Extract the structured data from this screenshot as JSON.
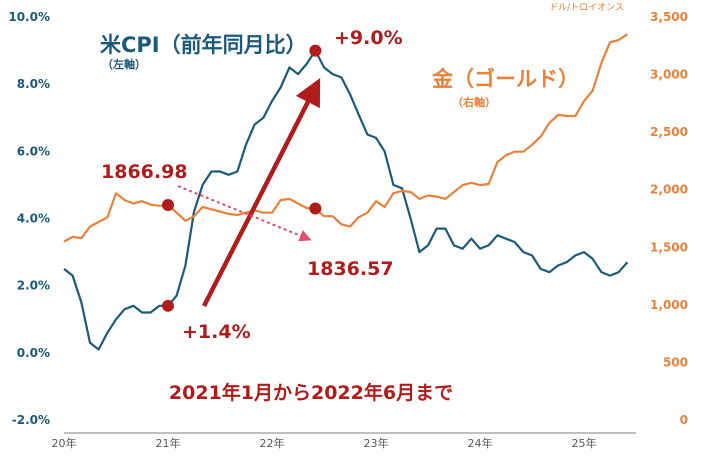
{
  "chart_data": {
    "type": "line",
    "title": "",
    "x_ticks": [
      "20年",
      "21年",
      "22年",
      "23年",
      "24年",
      "25年"
    ],
    "left_axis": {
      "unit_label": "",
      "ylim": [
        -2.0,
        10.0
      ],
      "tick_labels": [
        "-2.0%",
        "0.0%",
        "2.0%",
        "4.0%",
        "6.0%",
        "8.0%",
        "10.0%"
      ]
    },
    "right_axis": {
      "unit_label": "ドル/トロイオンス",
      "ylim": [
        0,
        3500
      ],
      "tick_labels": [
        "0",
        "500",
        "1,000",
        "1,500",
        "2,000",
        "2,500",
        "3,000",
        "3,500"
      ]
    },
    "series": [
      {
        "name": "米CPI（前年同月比）",
        "axis_note": "（左軸）",
        "axis": "left",
        "color": "#1b5a7a",
        "x": [
          2020.0,
          2020.083,
          2020.167,
          2020.25,
          2020.333,
          2020.417,
          2020.5,
          2020.583,
          2020.667,
          2020.75,
          2020.833,
          2020.917,
          2021.0,
          2021.083,
          2021.167,
          2021.25,
          2021.333,
          2021.417,
          2021.5,
          2021.583,
          2021.667,
          2021.75,
          2021.833,
          2021.917,
          2022.0,
          2022.083,
          2022.167,
          2022.25,
          2022.333,
          2022.417,
          2022.5,
          2022.583,
          2022.667,
          2022.75,
          2022.833,
          2022.917,
          2023.0,
          2023.083,
          2023.167,
          2023.25,
          2023.333,
          2023.417,
          2023.5,
          2023.583,
          2023.667,
          2023.75,
          2023.833,
          2023.917,
          2024.0,
          2024.083,
          2024.167,
          2024.25,
          2024.333,
          2024.417,
          2024.5,
          2024.583,
          2024.667,
          2024.75,
          2024.833,
          2024.917,
          2025.0,
          2025.083,
          2025.167,
          2025.25,
          2025.333,
          2025.417
        ],
        "values": [
          2.5,
          2.3,
          1.5,
          0.3,
          0.1,
          0.6,
          1.0,
          1.3,
          1.4,
          1.2,
          1.2,
          1.4,
          1.4,
          1.7,
          2.6,
          4.2,
          5.0,
          5.4,
          5.4,
          5.3,
          5.4,
          6.2,
          6.8,
          7.0,
          7.5,
          7.9,
          8.5,
          8.3,
          8.6,
          9.0,
          8.5,
          8.3,
          8.2,
          7.7,
          7.1,
          6.5,
          6.4,
          6.0,
          5.0,
          4.9,
          4.0,
          3.0,
          3.2,
          3.7,
          3.7,
          3.2,
          3.1,
          3.4,
          3.1,
          3.2,
          3.5,
          3.4,
          3.3,
          3.0,
          2.9,
          2.5,
          2.4,
          2.6,
          2.7,
          2.9,
          3.0,
          2.8,
          2.4,
          2.3,
          2.4,
          2.7
        ]
      },
      {
        "name": "金（ゴールド）",
        "axis_note": "（右軸）",
        "axis": "right",
        "color": "#e8813a",
        "x": [
          2020.0,
          2020.083,
          2020.167,
          2020.25,
          2020.333,
          2020.417,
          2020.5,
          2020.583,
          2020.667,
          2020.75,
          2020.833,
          2020.917,
          2021.0,
          2021.083,
          2021.167,
          2021.25,
          2021.333,
          2021.417,
          2021.5,
          2021.583,
          2021.667,
          2021.75,
          2021.833,
          2021.917,
          2022.0,
          2022.083,
          2022.167,
          2022.25,
          2022.333,
          2022.417,
          2022.5,
          2022.583,
          2022.667,
          2022.75,
          2022.833,
          2022.917,
          2023.0,
          2023.083,
          2023.167,
          2023.25,
          2023.333,
          2023.417,
          2023.5,
          2023.583,
          2023.667,
          2023.75,
          2023.833,
          2023.917,
          2024.0,
          2024.083,
          2024.167,
          2024.25,
          2024.333,
          2024.417,
          2024.5,
          2024.583,
          2024.667,
          2024.75,
          2024.833,
          2024.917,
          2025.0,
          2025.083,
          2025.167,
          2025.25,
          2025.333,
          2025.417
        ],
        "values": [
          1550,
          1590,
          1580,
          1680,
          1720,
          1760,
          1970,
          1910,
          1880,
          1900,
          1870,
          1860,
          1867,
          1800,
          1730,
          1770,
          1850,
          1830,
          1810,
          1790,
          1780,
          1800,
          1820,
          1800,
          1800,
          1910,
          1920,
          1880,
          1840,
          1837,
          1770,
          1770,
          1700,
          1680,
          1760,
          1800,
          1900,
          1850,
          1970,
          1990,
          1980,
          1920,
          1950,
          1940,
          1920,
          1980,
          2040,
          2060,
          2040,
          2050,
          2240,
          2300,
          2330,
          2330,
          2390,
          2460,
          2580,
          2650,
          2640,
          2640,
          2770,
          2860,
          3100,
          3280,
          3300,
          3350
        ]
      }
    ],
    "highlight_points": [
      {
        "series": "米CPI（前年同月比）",
        "x": 2021.0,
        "y": 1.4,
        "label": "+1.4%"
      },
      {
        "series": "米CPI（前年同月比）",
        "x": 2022.417,
        "y": 9.0,
        "label": "+9.0%"
      },
      {
        "series": "金（ゴールド）",
        "x": 2021.0,
        "y": 1866.98,
        "label": "1866.98"
      },
      {
        "series": "金（ゴールド）",
        "x": 2022.417,
        "y": 1836.57,
        "label": "1836.57"
      }
    ],
    "period_caption": "2021年1月から2022年6月まで",
    "grid": false,
    "legend": "inline labels"
  }
}
